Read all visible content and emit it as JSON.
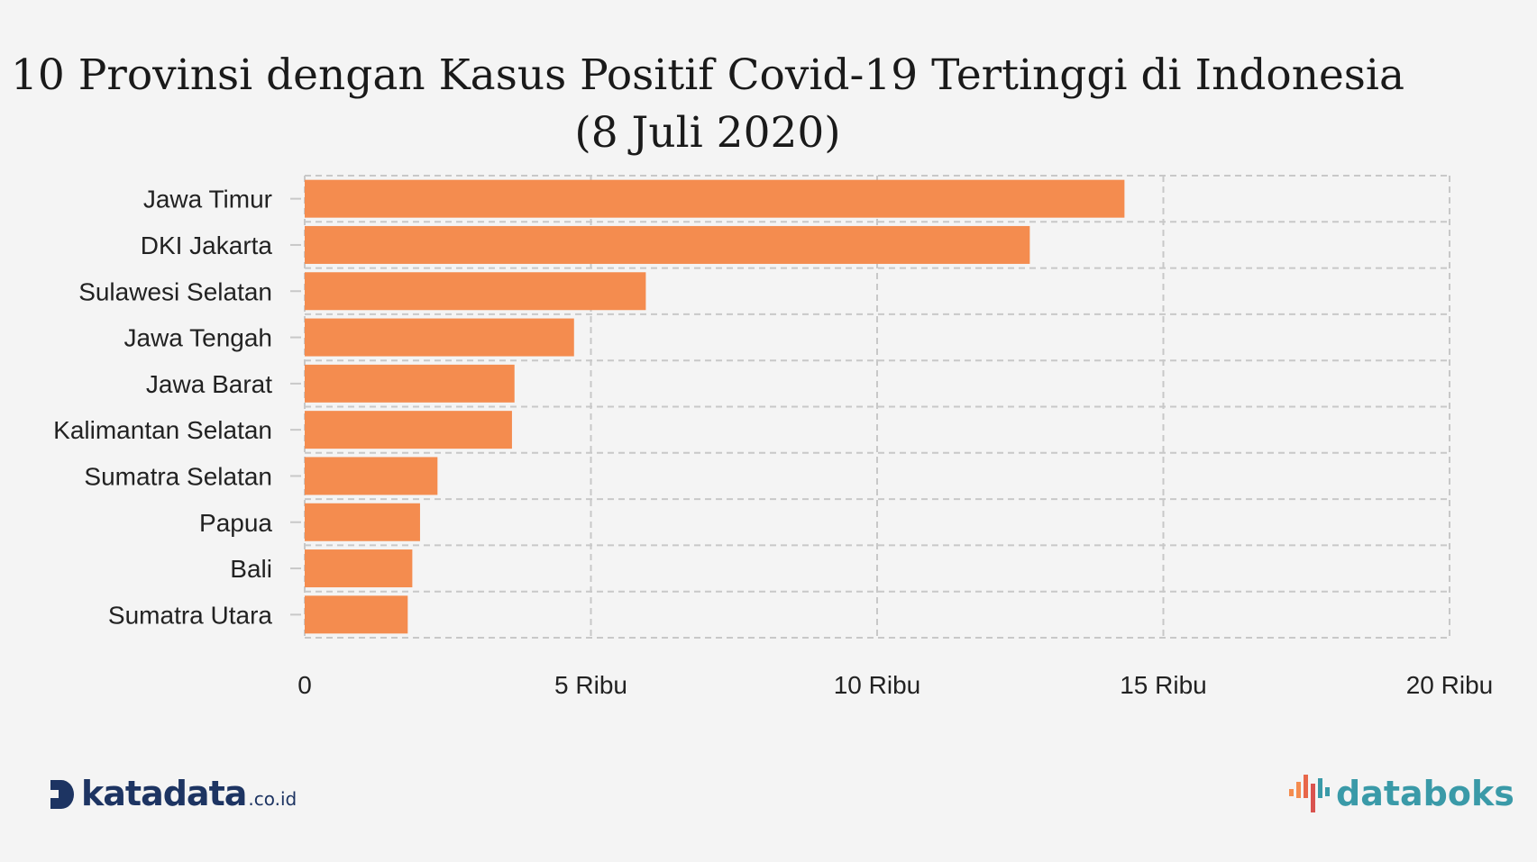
{
  "chart_data": {
    "type": "bar",
    "orientation": "horizontal",
    "title": "10 Provinsi dengan Kasus Positif Covid-19 Tertinggi di Indonesia (8 Juli 2020)",
    "categories": [
      "Jawa Timur",
      "DKI Jakarta",
      "Sulawesi Selatan",
      "Jawa Tengah",
      "Jawa Barat",
      "Kalimantan Selatan",
      "Sumatra Selatan",
      "Papua",
      "Bali",
      "Sumatra Utara"
    ],
    "values": [
      14321,
      12667,
      5959,
      4705,
      3665,
      3621,
      2320,
      2015,
      1880,
      1800
    ],
    "xlim": [
      0,
      20000
    ],
    "x_ticks": [
      0,
      5000,
      10000,
      15000,
      20000
    ],
    "x_tick_labels": [
      "0",
      "5 Ribu",
      "10 Ribu",
      "15 Ribu",
      "20 Ribu"
    ],
    "bar_color": "#f48c4f",
    "grid": true,
    "legend": "none"
  },
  "logos": {
    "left_text": "katadata",
    "left_suffix": ".co.id",
    "right_text": "databoks",
    "left_color": "#1d3462",
    "right_color": "#3a9aa8"
  }
}
